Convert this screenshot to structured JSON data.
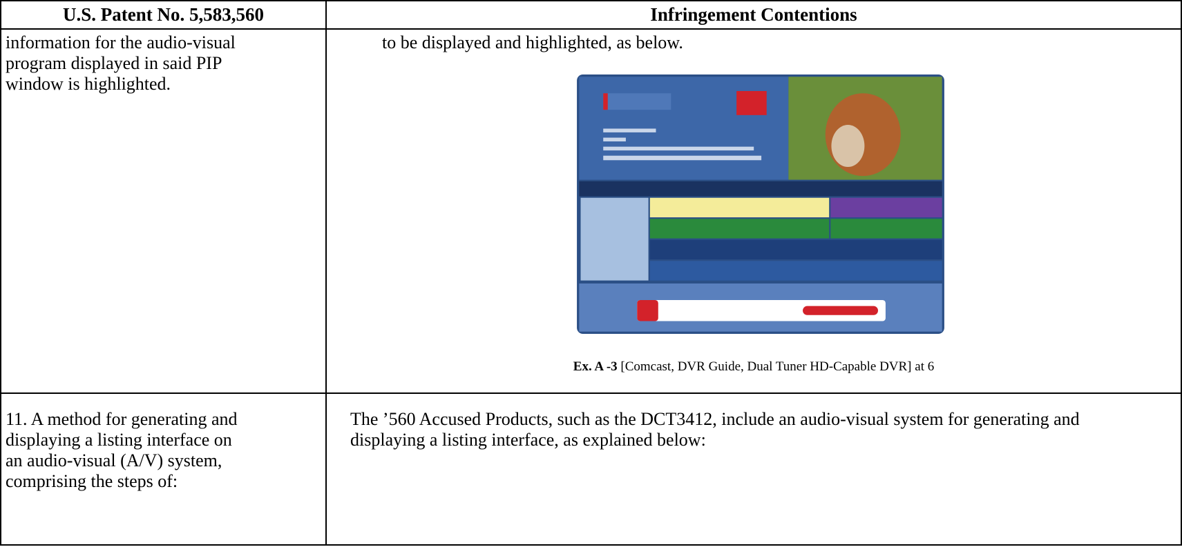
{
  "table": {
    "header": [
      "U.S. Patent No. 5,583,560",
      "Infringement Contentions"
    ],
    "rows": [
      {
        "claim": "information for the audio-visual program displayed in said PIP window is highlighted.",
        "contention": "to be displayed and highlighted, as below.",
        "caption_bold": "Ex. A -3",
        "caption_rest": "[Comcast, DVR Guide, Dual Tuner HD-Capable DVR] at 6"
      },
      {
        "claim": "11. A method for generating and displaying a listing interface on an audio-visual (A/V) system, comprising the steps of:",
        "contention": "The ’560 Accused Products, such as the DCT3412, include an audio-visual system for generating and displaying a listing interface, as explained below:"
      }
    ]
  }
}
